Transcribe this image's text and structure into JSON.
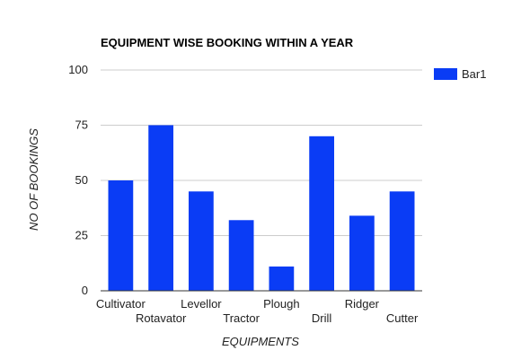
{
  "chart_data": {
    "type": "bar",
    "title": "EQUIPMENT WISE BOOKING WITHIN A YEAR",
    "xlabel": "EQUIPMENTS",
    "ylabel": "NO OF BOOKINGS",
    "categories": [
      "Cultivator",
      "Rotavator",
      "Levellor",
      "Tractor",
      "Plough",
      "Drill",
      "Ridger",
      "Cutter"
    ],
    "series": [
      {
        "name": "Bar1",
        "values": [
          50,
          75,
          45,
          32,
          11,
          70,
          34,
          45
        ],
        "color": "#0a3cf5"
      }
    ],
    "ylim": [
      0,
      100
    ],
    "yticks": [
      "0",
      "25",
      "50",
      "75",
      "100"
    ],
    "grid": true,
    "legend_position": "right"
  }
}
